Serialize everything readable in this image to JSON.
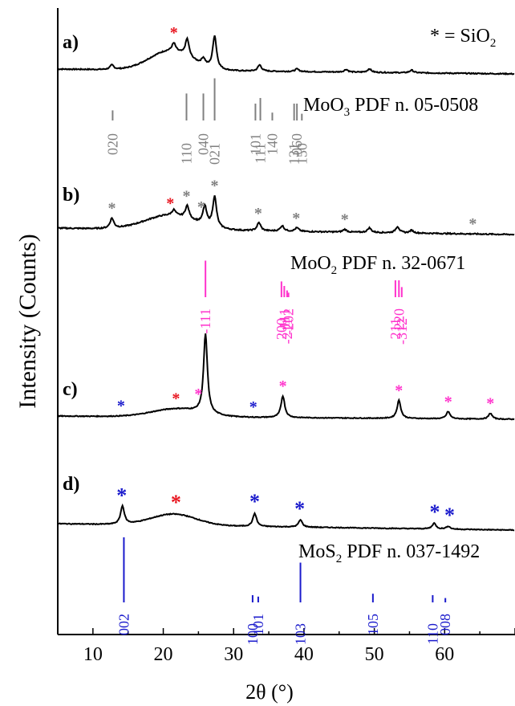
{
  "chart_data": {
    "type": "line",
    "xlabel": "2θ (°)",
    "ylabel": "Intensity (Counts)",
    "xlim": [
      5,
      70
    ],
    "xticks": [
      10,
      20,
      30,
      40,
      50,
      60
    ],
    "panels": [
      {
        "label": "a)",
        "color": "#000000",
        "peaks": [
          [
            12.7,
            10
          ],
          [
            21.5,
            18
          ],
          [
            23.4,
            40
          ],
          [
            25.7,
            15
          ],
          [
            27.3,
            75
          ],
          [
            33.7,
            14
          ],
          [
            39.0,
            6
          ],
          [
            46.0,
            6
          ],
          [
            49.3,
            8
          ],
          [
            55.3,
            6
          ]
        ],
        "stars": [
          {
            "x": 21.5,
            "color": "#e8141e"
          }
        ]
      },
      {
        "label": "b)",
        "color": "#000000",
        "peaks": [
          [
            12.7,
            22
          ],
          [
            21.5,
            12
          ],
          [
            23.4,
            28
          ],
          [
            25.9,
            40
          ],
          [
            27.3,
            68
          ],
          [
            33.6,
            18
          ],
          [
            36.9,
            12
          ],
          [
            39.0,
            8
          ],
          [
            45.8,
            6
          ],
          [
            49.3,
            10
          ],
          [
            53.3,
            14
          ],
          [
            55.3,
            6
          ]
        ],
        "stars": [
          {
            "x": 12.7,
            "color": "#808080"
          },
          {
            "x": 21.0,
            "color": "#e8141e"
          },
          {
            "x": 23.3,
            "color": "#808080"
          },
          {
            "x": 25.4,
            "color": "#808080"
          },
          {
            "x": 27.3,
            "color": "#808080"
          },
          {
            "x": 33.5,
            "color": "#808080"
          },
          {
            "x": 38.9,
            "color": "#808080"
          },
          {
            "x": 45.8,
            "color": "#808080"
          },
          {
            "x": 64.0,
            "color": "#808080"
          }
        ]
      },
      {
        "label": "c)",
        "color": "#000000",
        "peaks": [
          [
            26.0,
            110
          ],
          [
            37.0,
            30
          ],
          [
            53.5,
            25
          ],
          [
            60.5,
            10
          ],
          [
            66.5,
            8
          ]
        ],
        "stars": [
          {
            "x": 14.0,
            "color": "#1a1acc"
          },
          {
            "x": 21.8,
            "color": "#e8141e"
          },
          {
            "x": 25.0,
            "color": "#ff33cc"
          },
          {
            "x": 32.8,
            "color": "#1a1acc"
          },
          {
            "x": 37.0,
            "color": "#ff33cc"
          },
          {
            "x": 53.5,
            "color": "#ff33cc"
          },
          {
            "x": 60.5,
            "color": "#ff33cc"
          },
          {
            "x": 66.5,
            "color": "#ff33cc"
          }
        ]
      },
      {
        "label": "d)",
        "color": "#000000",
        "peaks": [
          [
            14.2,
            25
          ],
          [
            33.0,
            18
          ],
          [
            39.5,
            10
          ],
          [
            58.5,
            8
          ],
          [
            60.5,
            4
          ]
        ],
        "stars": [
          {
            "x": 14.1,
            "color": "#1a1acc"
          },
          {
            "x": 21.8,
            "color": "#e8141e"
          },
          {
            "x": 33.0,
            "color": "#1a1acc"
          },
          {
            "x": 39.4,
            "color": "#1a1acc"
          },
          {
            "x": 58.6,
            "color": "#1a1acc"
          },
          {
            "x": 60.7,
            "color": "#1a1acc"
          }
        ]
      }
    ],
    "references": [
      {
        "label": "MoO3 PDF n. 05-0508",
        "label_main": "MoO",
        "label_sub": "3",
        "label_rest": " PDF n. 05-0508",
        "color": "#808080",
        "hkl": [
          {
            "x": 12.8,
            "text": "020"
          },
          {
            "x": 23.3,
            "text": "110"
          },
          {
            "x": 25.7,
            "text": "040"
          },
          {
            "x": 27.3,
            "text": "021"
          },
          {
            "x": 33.1,
            "text": "101"
          },
          {
            "x": 33.8,
            "text": "111"
          },
          {
            "x": 35.5,
            "text": "140"
          },
          {
            "x": 38.6,
            "text": "131"
          },
          {
            "x": 39.0,
            "text": "060"
          },
          {
            "x": 39.7,
            "text": "150"
          }
        ]
      },
      {
        "label": "MoO2 PDF n. 32-0671",
        "label_main": "MoO",
        "label_sub": "2",
        "label_rest": " PDF n. 32-0671",
        "color": "#ff33cc",
        "hkl": [
          {
            "x": 26.0,
            "text": "-111"
          },
          {
            "x": 36.8,
            "text": "200"
          },
          {
            "x": 37.2,
            "text": "111"
          },
          {
            "x": 37.6,
            "text": "-211"
          },
          {
            "x": 37.8,
            "text": "-202"
          },
          {
            "x": 53.0,
            "text": "211"
          },
          {
            "x": 53.5,
            "text": "220"
          },
          {
            "x": 53.9,
            "text": "-312"
          }
        ]
      },
      {
        "label": "MoS2 PDF n. 037-1492",
        "label_main": "MoS",
        "label_sub": "2",
        "label_rest": " PDF n. 037-1492",
        "color": "#1a1acc",
        "hkl": [
          {
            "x": 14.4,
            "text": "002"
          },
          {
            "x": 32.7,
            "text": "100"
          },
          {
            "x": 33.5,
            "text": "101"
          },
          {
            "x": 39.5,
            "text": "103"
          },
          {
            "x": 49.8,
            "text": "105"
          },
          {
            "x": 58.3,
            "text": "110"
          },
          {
            "x": 60.1,
            "text": "008"
          }
        ]
      }
    ],
    "legend": {
      "text": "* = SiO2",
      "star": "*",
      "eq": " = SiO",
      "sub": "2",
      "color": "#e8141e"
    }
  }
}
